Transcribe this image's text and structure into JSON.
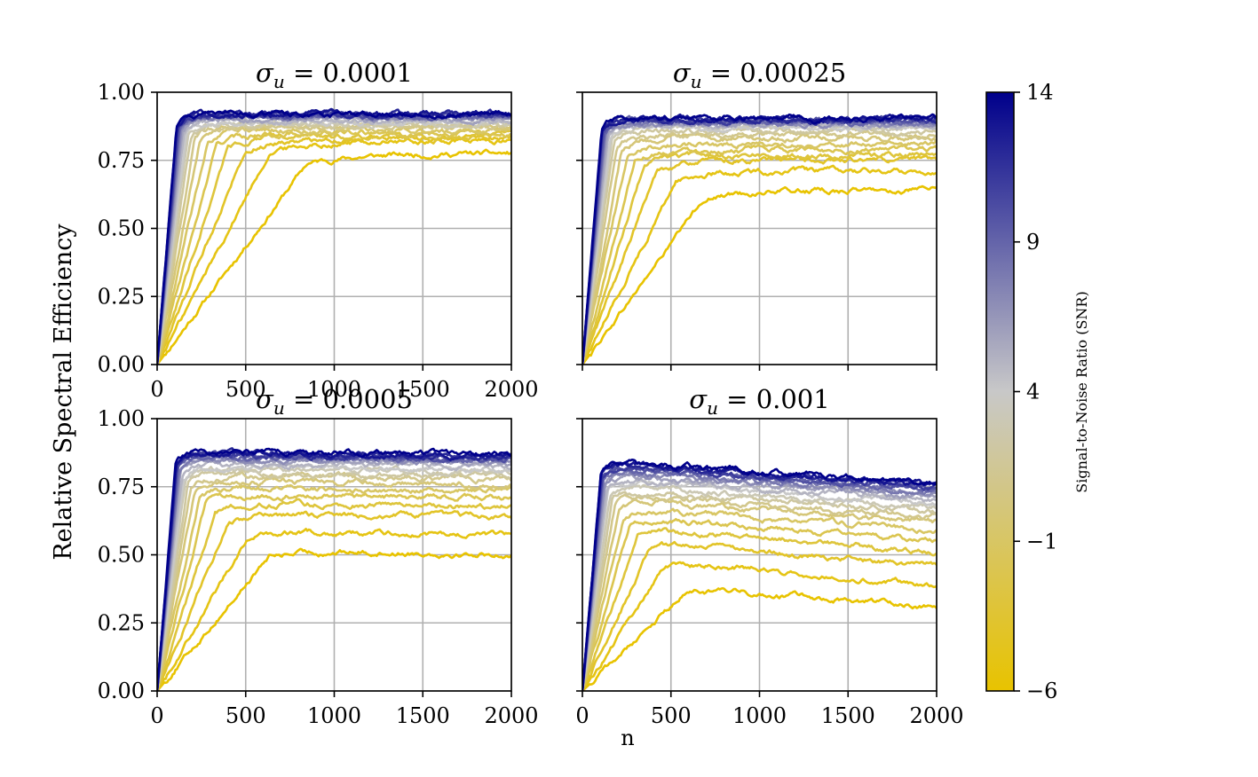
{
  "figure": {
    "ylabel": "Relative Spectral Efficiency",
    "xlabel": "n",
    "colorbar": {
      "label": "Signal-to-Noise Ratio (SNR)",
      "min": -6,
      "max": 14,
      "ticks": [
        14,
        9,
        4,
        -1,
        -6
      ],
      "tick_labels": [
        "14",
        "9",
        "4",
        "−1",
        "−6"
      ],
      "color_low": "#e8c300",
      "color_mid": "#c8c8c8",
      "color_high": "#00008b"
    }
  },
  "chart_data": [
    {
      "type": "line",
      "title_symbol": "σ",
      "title_sub": "u",
      "title_value": "= 0.0001",
      "xlim": [
        0,
        2000
      ],
      "ylim": [
        0,
        1
      ],
      "xticks": [
        0,
        500,
        1000,
        1500,
        2000
      ],
      "xtick_labels": [
        "0",
        "500",
        "1000",
        "1500",
        "2000"
      ],
      "yticks": [
        0,
        0.25,
        0.5,
        0.75,
        1.0
      ],
      "ytick_labels": [
        "0.00",
        "0.25",
        "0.50",
        "0.75",
        "1.00"
      ],
      "grid": true,
      "series": [
        {
          "snr": -6,
          "plateau": 0.775,
          "rise_n": 800,
          "drift": 0
        },
        {
          "snr": -5,
          "plateau": 0.82,
          "rise_n": 600,
          "drift": 0
        },
        {
          "snr": -4,
          "plateau": 0.83,
          "rise_n": 470,
          "drift": 0
        },
        {
          "snr": -3,
          "plateau": 0.84,
          "rise_n": 380,
          "drift": 0
        },
        {
          "snr": -2,
          "plateau": 0.85,
          "rise_n": 320,
          "drift": 0
        },
        {
          "snr": -1,
          "plateau": 0.86,
          "rise_n": 270,
          "drift": 0
        },
        {
          "snr": 0,
          "plateau": 0.87,
          "rise_n": 230,
          "drift": 0
        },
        {
          "snr": 1,
          "plateau": 0.875,
          "rise_n": 200,
          "drift": 0
        },
        {
          "snr": 2,
          "plateau": 0.88,
          "rise_n": 180,
          "drift": 0
        },
        {
          "snr": 3,
          "plateau": 0.885,
          "rise_n": 165,
          "drift": 0
        },
        {
          "snr": 4,
          "plateau": 0.89,
          "rise_n": 155,
          "drift": 0
        },
        {
          "snr": 5,
          "plateau": 0.895,
          "rise_n": 145,
          "drift": 0
        },
        {
          "snr": 6,
          "plateau": 0.9,
          "rise_n": 135,
          "drift": 0
        },
        {
          "snr": 7,
          "plateau": 0.905,
          "rise_n": 128,
          "drift": 0
        },
        {
          "snr": 8,
          "plateau": 0.91,
          "rise_n": 122,
          "drift": 0
        },
        {
          "snr": 9,
          "plateau": 0.91,
          "rise_n": 118,
          "drift": 0
        },
        {
          "snr": 10,
          "plateau": 0.915,
          "rise_n": 114,
          "drift": 0
        },
        {
          "snr": 11,
          "plateau": 0.915,
          "rise_n": 110,
          "drift": 0
        },
        {
          "snr": 12,
          "plateau": 0.92,
          "rise_n": 107,
          "drift": 0
        },
        {
          "snr": 13,
          "plateau": 0.92,
          "rise_n": 105,
          "drift": 0
        },
        {
          "snr": 14,
          "plateau": 0.92,
          "rise_n": 103,
          "drift": 0
        }
      ]
    },
    {
      "type": "line",
      "title_symbol": "σ",
      "title_sub": "u",
      "title_value": "= 0.00025",
      "xlim": [
        0,
        2000
      ],
      "ylim": [
        0,
        1
      ],
      "xticks": [
        0,
        500,
        1000,
        1500,
        2000
      ],
      "xtick_labels": [
        "",
        "",
        "",
        "",
        ""
      ],
      "yticks": [
        0,
        0.25,
        0.5,
        0.75,
        1.0
      ],
      "ytick_labels": [
        "",
        "",
        "",
        "",
        ""
      ],
      "grid": true,
      "series": [
        {
          "snr": -6,
          "plateau": 0.64,
          "rise_n": 650,
          "drift": 0
        },
        {
          "snr": -5,
          "plateau": 0.71,
          "rise_n": 500,
          "drift": 0
        },
        {
          "snr": -4,
          "plateau": 0.75,
          "rise_n": 400,
          "drift": 0
        },
        {
          "snr": -3,
          "plateau": 0.77,
          "rise_n": 330,
          "drift": 0
        },
        {
          "snr": -2,
          "plateau": 0.79,
          "rise_n": 280,
          "drift": 0
        },
        {
          "snr": -1,
          "plateau": 0.81,
          "rise_n": 240,
          "drift": 0
        },
        {
          "snr": 0,
          "plateau": 0.83,
          "rise_n": 210,
          "drift": 0
        },
        {
          "snr": 1,
          "plateau": 0.845,
          "rise_n": 185,
          "drift": 0
        },
        {
          "snr": 2,
          "plateau": 0.855,
          "rise_n": 170,
          "drift": 0
        },
        {
          "snr": 3,
          "plateau": 0.865,
          "rise_n": 158,
          "drift": 0
        },
        {
          "snr": 4,
          "plateau": 0.87,
          "rise_n": 148,
          "drift": 0
        },
        {
          "snr": 5,
          "plateau": 0.875,
          "rise_n": 140,
          "drift": 0
        },
        {
          "snr": 6,
          "plateau": 0.88,
          "rise_n": 132,
          "drift": 0
        },
        {
          "snr": 7,
          "plateau": 0.885,
          "rise_n": 125,
          "drift": 0
        },
        {
          "snr": 8,
          "plateau": 0.89,
          "rise_n": 120,
          "drift": 0
        },
        {
          "snr": 9,
          "plateau": 0.893,
          "rise_n": 116,
          "drift": 0
        },
        {
          "snr": 10,
          "plateau": 0.896,
          "rise_n": 112,
          "drift": 0
        },
        {
          "snr": 11,
          "plateau": 0.898,
          "rise_n": 109,
          "drift": 0
        },
        {
          "snr": 12,
          "plateau": 0.9,
          "rise_n": 106,
          "drift": 0
        },
        {
          "snr": 13,
          "plateau": 0.902,
          "rise_n": 104,
          "drift": 0
        },
        {
          "snr": 14,
          "plateau": 0.905,
          "rise_n": 102,
          "drift": 0
        }
      ]
    },
    {
      "type": "line",
      "title_symbol": "σ",
      "title_sub": "u",
      "title_value": "= 0.0005",
      "xlim": [
        0,
        2000
      ],
      "ylim": [
        0,
        1
      ],
      "xticks": [
        0,
        500,
        1000,
        1500,
        2000
      ],
      "xtick_labels": [
        "0",
        "500",
        "1000",
        "1500",
        "2000"
      ],
      "yticks": [
        0,
        0.25,
        0.5,
        0.75,
        1.0
      ],
      "ytick_labels": [
        "0.00",
        "0.25",
        "0.50",
        "0.75",
        "1.00"
      ],
      "grid": true,
      "series": [
        {
          "snr": -6,
          "plateau": 0.52,
          "rise_n": 600,
          "drift": -0.02
        },
        {
          "snr": -5,
          "plateau": 0.59,
          "rise_n": 480,
          "drift": -0.02
        },
        {
          "snr": -4,
          "plateau": 0.65,
          "rise_n": 380,
          "drift": -0.01
        },
        {
          "snr": -3,
          "plateau": 0.69,
          "rise_n": 310,
          "drift": -0.01
        },
        {
          "snr": -2,
          "plateau": 0.72,
          "rise_n": 260,
          "drift": -0.01
        },
        {
          "snr": -1,
          "plateau": 0.745,
          "rise_n": 225,
          "drift": -0.01
        },
        {
          "snr": 0,
          "plateau": 0.77,
          "rise_n": 200,
          "drift": -0.01
        },
        {
          "snr": 1,
          "plateau": 0.79,
          "rise_n": 180,
          "drift": -0.01
        },
        {
          "snr": 2,
          "plateau": 0.8,
          "rise_n": 165,
          "drift": -0.01
        },
        {
          "snr": 3,
          "plateau": 0.815,
          "rise_n": 152,
          "drift": -0.01
        },
        {
          "snr": 4,
          "plateau": 0.825,
          "rise_n": 142,
          "drift": -0.01
        },
        {
          "snr": 5,
          "plateau": 0.835,
          "rise_n": 134,
          "drift": -0.01
        },
        {
          "snr": 6,
          "plateau": 0.845,
          "rise_n": 127,
          "drift": -0.01
        },
        {
          "snr": 7,
          "plateau": 0.85,
          "rise_n": 121,
          "drift": -0.01
        },
        {
          "snr": 8,
          "plateau": 0.855,
          "rise_n": 116,
          "drift": -0.01
        },
        {
          "snr": 9,
          "plateau": 0.86,
          "rise_n": 112,
          "drift": -0.01
        },
        {
          "snr": 10,
          "plateau": 0.865,
          "rise_n": 108,
          "drift": -0.01
        },
        {
          "snr": 11,
          "plateau": 0.868,
          "rise_n": 105,
          "drift": -0.01
        },
        {
          "snr": 12,
          "plateau": 0.872,
          "rise_n": 103,
          "drift": -0.01
        },
        {
          "snr": 13,
          "plateau": 0.875,
          "rise_n": 101,
          "drift": -0.01
        },
        {
          "snr": 14,
          "plateau": 0.878,
          "rise_n": 100,
          "drift": -0.01
        }
      ]
    },
    {
      "type": "line",
      "title_symbol": "σ",
      "title_sub": "u",
      "title_value": "= 0.001",
      "xlim": [
        0,
        2000
      ],
      "ylim": [
        0,
        1
      ],
      "xticks": [
        0,
        500,
        1000,
        1500,
        2000
      ],
      "xtick_labels": [
        "0",
        "500",
        "1000",
        "1500",
        "2000"
      ],
      "yticks": [
        0,
        0.25,
        0.5,
        0.75,
        1.0
      ],
      "ytick_labels": [
        "",
        "",
        "",
        "",
        ""
      ],
      "grid": true,
      "series": [
        {
          "snr": -6,
          "plateau": 0.38,
          "rise_n": 550,
          "drift": -0.07
        },
        {
          "snr": -5,
          "plateau": 0.48,
          "rise_n": 440,
          "drift": -0.09
        },
        {
          "snr": -4,
          "plateau": 0.55,
          "rise_n": 360,
          "drift": -0.09
        },
        {
          "snr": -3,
          "plateau": 0.6,
          "rise_n": 300,
          "drift": -0.09
        },
        {
          "snr": -2,
          "plateau": 0.64,
          "rise_n": 255,
          "drift": -0.09
        },
        {
          "snr": -1,
          "plateau": 0.67,
          "rise_n": 220,
          "drift": -0.08
        },
        {
          "snr": 0,
          "plateau": 0.7,
          "rise_n": 195,
          "drift": -0.08
        },
        {
          "snr": 1,
          "plateau": 0.72,
          "rise_n": 175,
          "drift": -0.08
        },
        {
          "snr": 2,
          "plateau": 0.74,
          "rise_n": 160,
          "drift": -0.08
        },
        {
          "snr": 3,
          "plateau": 0.755,
          "rise_n": 148,
          "drift": -0.08
        },
        {
          "snr": 4,
          "plateau": 0.77,
          "rise_n": 138,
          "drift": -0.08
        },
        {
          "snr": 5,
          "plateau": 0.78,
          "rise_n": 130,
          "drift": -0.08
        },
        {
          "snr": 6,
          "plateau": 0.79,
          "rise_n": 124,
          "drift": -0.08
        },
        {
          "snr": 7,
          "plateau": 0.8,
          "rise_n": 118,
          "drift": -0.08
        },
        {
          "snr": 8,
          "plateau": 0.81,
          "rise_n": 114,
          "drift": -0.08
        },
        {
          "snr": 9,
          "plateau": 0.82,
          "rise_n": 110,
          "drift": -0.08
        },
        {
          "snr": 10,
          "plateau": 0.825,
          "rise_n": 106,
          "drift": -0.08
        },
        {
          "snr": 11,
          "plateau": 0.83,
          "rise_n": 104,
          "drift": -0.08
        },
        {
          "snr": 12,
          "plateau": 0.835,
          "rise_n": 102,
          "drift": -0.08
        },
        {
          "snr": 13,
          "plateau": 0.84,
          "rise_n": 100,
          "drift": -0.08
        },
        {
          "snr": 14,
          "plateau": 0.845,
          "rise_n": 99,
          "drift": -0.08
        }
      ]
    }
  ]
}
